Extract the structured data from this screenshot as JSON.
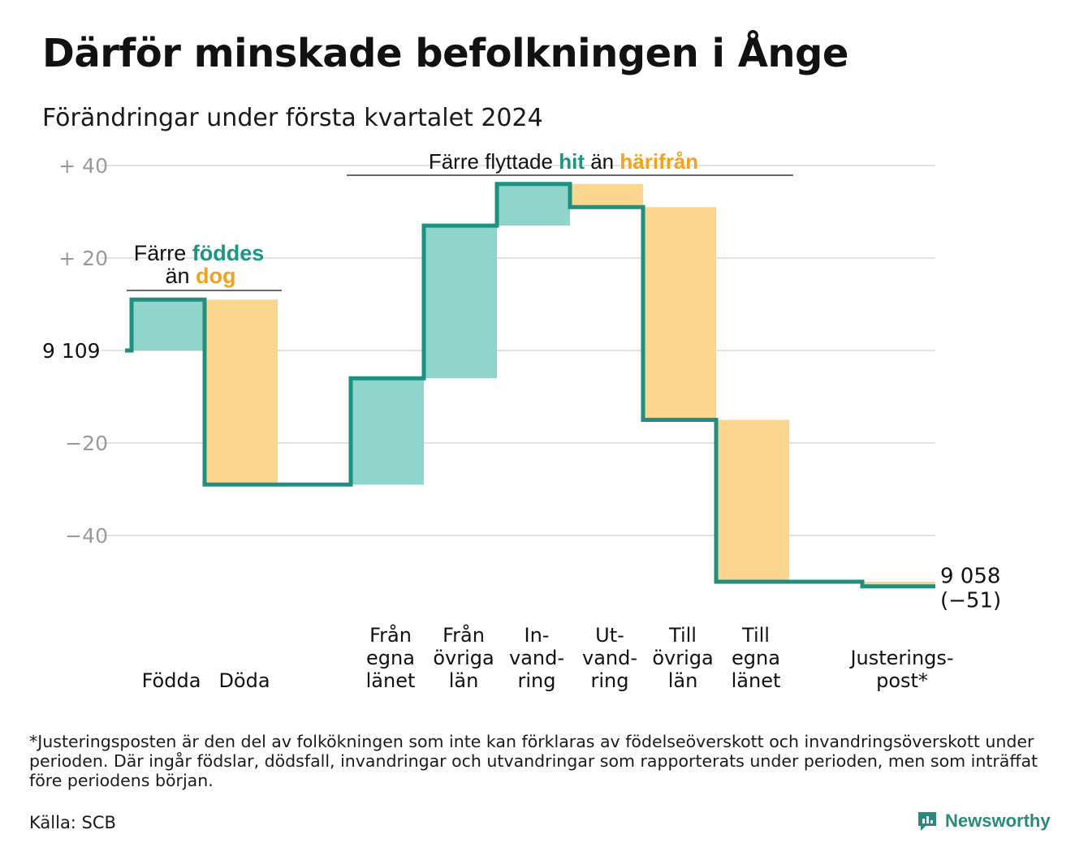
{
  "title": "Därför minskade befolkningen i Ånge",
  "subtitle": "Förändringar under första kvartalet 2024",
  "footnote": "*Justeringsposten är den del av folkökningen som inte kan förklaras av födelseöverskott och invandringsöverskott under perioden. Där ingår födslar, dödsfall, invandringar och utvandringar som rapporterats under perioden, men som inträffat före periodens början.",
  "source": "Källa: SCB",
  "brand": "Newsworthy",
  "colors": {
    "increase": "#8fd5cb",
    "decrease": "#fbd68f",
    "line": "#1f8f82",
    "teal_text": "#1f9484",
    "orange_text": "#f3a21c",
    "grid": "#e3e3e3",
    "axis_text": "#9a9a9a"
  },
  "annotations": {
    "births": {
      "line1": "Färre",
      "word_in": "föddes",
      "line2": "än",
      "word_out": "dog"
    },
    "migration": {
      "prefix": "Färre flyttade",
      "word_in": "hit",
      "mid": "än",
      "word_out": "härifrån"
    }
  },
  "chart_data": {
    "type": "waterfall",
    "start_value": 9109,
    "start_label": "9 109",
    "end_value": 9058,
    "end_label": "9 058",
    "end_change_label": "(−51)",
    "y_tick_labels": [
      "+ 40",
      "+ 20",
      "9 109",
      "−20",
      "−40"
    ],
    "y_tick_values": [
      40,
      20,
      0,
      -20,
      -40
    ],
    "ylim": [
      -50,
      40
    ],
    "grid": true,
    "steps": [
      {
        "label": [
          "Födda"
        ],
        "value": 11
      },
      {
        "label": [
          "Döda"
        ],
        "value": -40
      },
      {
        "label": [],
        "value": 0
      },
      {
        "label": [
          "Från",
          "egna",
          "länet"
        ],
        "value": 23
      },
      {
        "label": [
          "Från",
          "övriga",
          "län"
        ],
        "value": 33
      },
      {
        "label": [
          "In-",
          "vand-",
          "ring"
        ],
        "value": 9
      },
      {
        "label": [
          "Ut-",
          "vand-",
          "ring"
        ],
        "value": -5
      },
      {
        "label": [
          "Till",
          "övriga",
          "län"
        ],
        "value": -46
      },
      {
        "label": [
          "Till",
          "egna",
          "länet"
        ],
        "value": -35
      },
      {
        "label": [],
        "value": 0
      },
      {
        "label": [
          "Justerings-",
          "post*"
        ],
        "value": -1
      }
    ]
  }
}
